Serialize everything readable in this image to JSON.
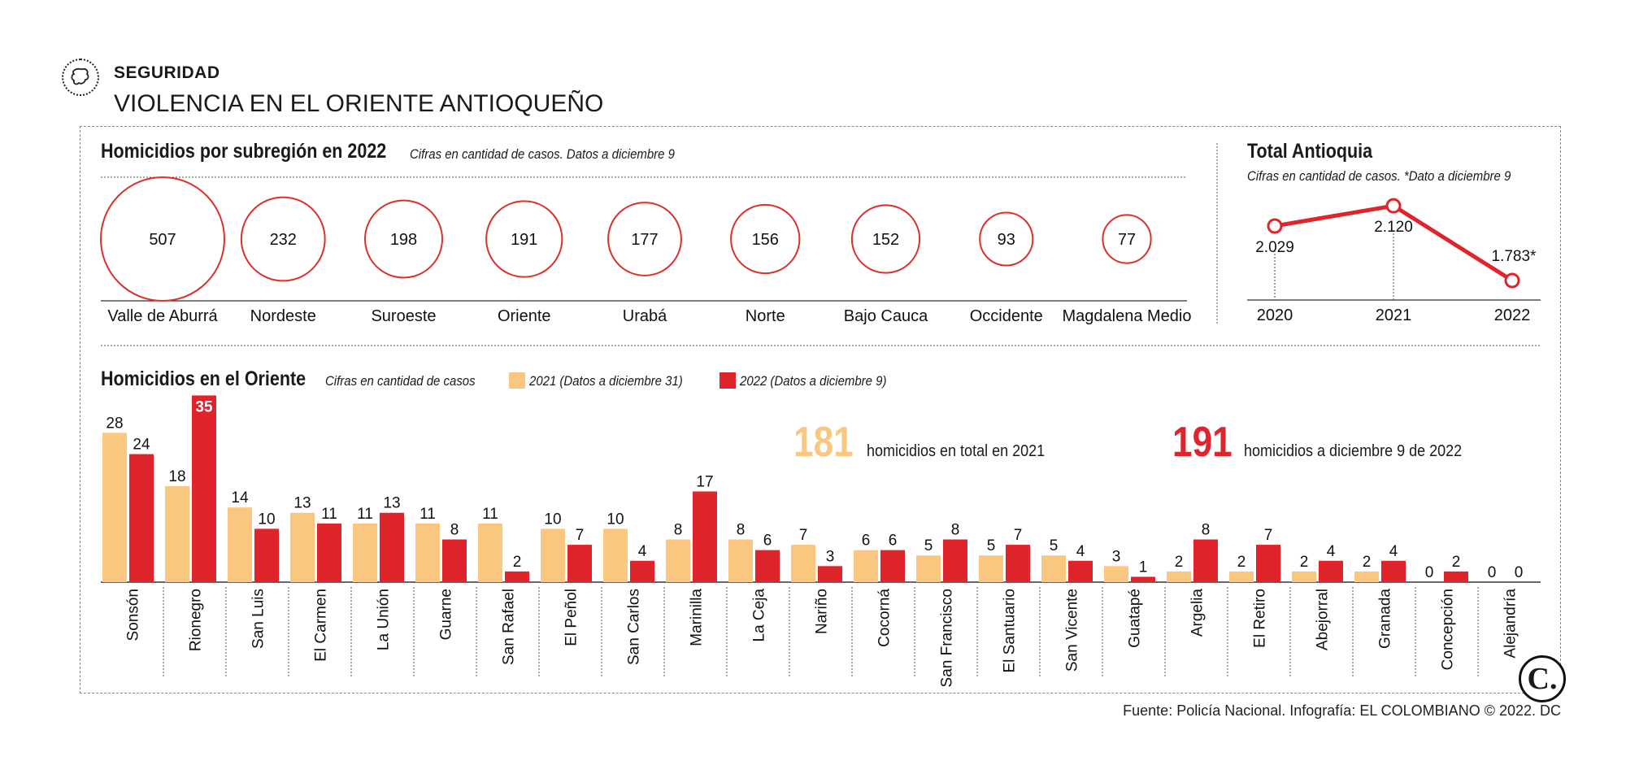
{
  "header": {
    "section": "SEGURIDAD",
    "title": "VIOLENCIA EN EL ORIENTE ANTIOQUEÑO"
  },
  "footer": {
    "source": "Fuente: Policía Nacional. Infografía: EL COLOMBIANO © 2022. DC",
    "logo": "C."
  },
  "colors": {
    "red": "#e0242b",
    "yellow": "#f9c77f",
    "circle_stroke": "#d9312b"
  },
  "chart_data": [
    {
      "type": "bubble",
      "title": "Homicidios por subregión en 2022",
      "subtitle": "Cifras en cantidad de casos. Datos a diciembre 9",
      "categories": [
        "Valle de Aburrá",
        "Nordeste",
        "Suroeste",
        "Oriente",
        "Urabá",
        "Norte",
        "Bajo Cauca",
        "Occidente",
        "Magdalena Medio"
      ],
      "values": [
        507,
        232,
        198,
        191,
        177,
        156,
        152,
        93,
        77
      ]
    },
    {
      "type": "line",
      "title": "Total Antioquia",
      "subtitle": "Cifras en cantidad de casos. *Dato a diciembre 9",
      "x": [
        "2020",
        "2021",
        "2022"
      ],
      "values": [
        2029,
        2120,
        1783
      ],
      "labels": [
        "2.029",
        "2.120",
        "1.783*"
      ],
      "ylim": [
        1750,
        2150
      ]
    },
    {
      "type": "bar",
      "title": "Homicidios en el Oriente",
      "subtitle": "Cifras en cantidad de casos",
      "categories": [
        "Sonsón",
        "Rionegro",
        "San Luis",
        "El Carmen",
        "La Unión",
        "Guarne",
        "San Rafael",
        "El Peñol",
        "San Carlos",
        "Marinilla",
        "La Ceja",
        "Nariño",
        "Cocorná",
        "San Francisco",
        "El Santuario",
        "San Vicente",
        "Guatapé",
        "Argelia",
        "El Retiro",
        "Abejorral",
        "Granada",
        "Concepción",
        "Alejandría"
      ],
      "series": [
        {
          "name": "2021 (Datos a diciembre 31)",
          "values": [
            28,
            18,
            14,
            13,
            11,
            11,
            11,
            10,
            10,
            8,
            8,
            7,
            6,
            5,
            5,
            5,
            3,
            2,
            2,
            2,
            2,
            0,
            0
          ]
        },
        {
          "name": "2022 (Datos a diciembre 9)",
          "values": [
            24,
            35,
            10,
            11,
            13,
            8,
            2,
            7,
            4,
            17,
            6,
            3,
            6,
            8,
            7,
            4,
            1,
            8,
            7,
            4,
            4,
            2,
            0
          ]
        }
      ],
      "ylim": [
        0,
        35
      ],
      "totals": [
        {
          "value": "181",
          "text": "homicidios en total en 2021"
        },
        {
          "value": "191",
          "text": "homicidios a diciembre 9 de 2022"
        }
      ]
    }
  ]
}
